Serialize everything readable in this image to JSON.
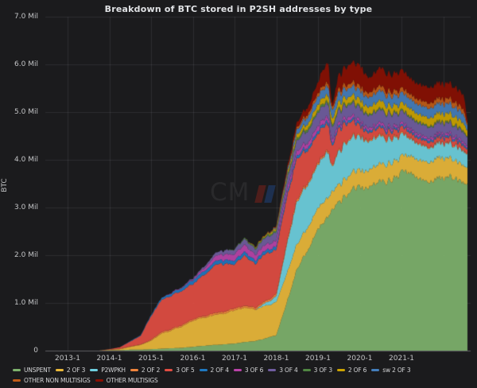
{
  "title": "Breakdown of BTC stored in P2SH addresses by type",
  "y_axis": {
    "label": "BTC",
    "ticks": [
      {
        "label": "7.0 Mil",
        "value": 7.0
      },
      {
        "label": "6.0 Mil",
        "value": 6.0
      },
      {
        "label": "5.0 Mil",
        "value": 5.0
      },
      {
        "label": "4.0 Mil",
        "value": 4.0
      },
      {
        "label": "3.0 Mil",
        "value": 3.0
      },
      {
        "label": "2.0 Mil",
        "value": 2.0
      },
      {
        "label": "1.0 Mil",
        "value": 1.0
      },
      {
        "label": "0",
        "value": 0
      }
    ]
  },
  "x_axis": {
    "ticks": [
      "2013-1",
      "2014-1",
      "2015-1",
      "2016-1",
      "2017-1",
      "2018-1",
      "2019-1",
      "2020-1",
      "2021-1"
    ]
  },
  "watermark": {
    "text": "CM",
    "logo": "coinmetrics-mark"
  },
  "colors": {
    "background": "#1b1b1d",
    "grid": "rgba(208,210,213,0.10)",
    "axis_line": "rgba(208,210,213,0.30)",
    "tick_text": "#c3c4c6",
    "title_text": "#e0e2e5"
  },
  "chart_data": {
    "type": "area",
    "stacked": true,
    "title": "Breakdown of BTC stored in P2SH addresses by type",
    "xlabel": "",
    "ylabel": "BTC",
    "unit": "Mil BTC",
    "ylim": [
      0,
      7.0
    ],
    "x_range": [
      "2012-07",
      "2022-08"
    ],
    "grid": true,
    "legend_position": "bottom",
    "x": [
      "2012-07",
      "2012-10",
      "2013-01",
      "2013-04",
      "2013-07",
      "2013-10",
      "2014-01",
      "2014-04",
      "2014-07",
      "2014-10",
      "2015-01",
      "2015-04",
      "2015-07",
      "2015-10",
      "2016-01",
      "2016-04",
      "2016-07",
      "2016-10",
      "2017-01",
      "2017-04",
      "2017-07",
      "2017-10",
      "2018-01",
      "2018-04",
      "2018-07",
      "2018-10",
      "2019-01",
      "2019-02",
      "2019-04",
      "2019-05",
      "2019-07",
      "2019-10",
      "2020-01",
      "2020-04",
      "2020-07",
      "2020-10",
      "2021-01",
      "2021-04",
      "2021-07",
      "2021-10",
      "2022-01",
      "2022-04",
      "2022-07",
      "2022-08"
    ],
    "series": [
      {
        "name": "UNSPENT",
        "color": "#7EB26D",
        "values": [
          0,
          0,
          0,
          0,
          0,
          0,
          0.01,
          0.01,
          0.02,
          0.02,
          0.03,
          0.04,
          0.05,
          0.06,
          0.08,
          0.1,
          0.12,
          0.13,
          0.15,
          0.18,
          0.2,
          0.26,
          0.32,
          1.0,
          1.7,
          2.1,
          2.55,
          2.65,
          2.8,
          2.95,
          3.1,
          3.3,
          3.45,
          3.4,
          3.55,
          3.55,
          3.72,
          3.8,
          3.55,
          3.6,
          3.65,
          3.62,
          3.55,
          3.5
        ]
      },
      {
        "name": "2 OF 3",
        "color": "#EAB839",
        "values": [
          0,
          0,
          0,
          0,
          0,
          0,
          0.01,
          0.02,
          0.06,
          0.1,
          0.18,
          0.32,
          0.38,
          0.45,
          0.55,
          0.6,
          0.62,
          0.65,
          0.7,
          0.72,
          0.66,
          0.68,
          0.7,
          0.6,
          0.52,
          0.48,
          0.44,
          0.43,
          0.41,
          0.38,
          0.36,
          0.36,
          0.35,
          0.36,
          0.37,
          0.36,
          0.33,
          0.36,
          0.4,
          0.42,
          0.42,
          0.38,
          0.36,
          0.35
        ]
      },
      {
        "name": "P2WPKH",
        "color": "#6ED0E0",
        "values": [
          0,
          0,
          0,
          0,
          0,
          0,
          0,
          0,
          0,
          0,
          0,
          0,
          0,
          0,
          0,
          0,
          0,
          0,
          0,
          0,
          0,
          0.06,
          0.12,
          0.6,
          0.9,
          0.9,
          0.9,
          0.95,
          0.93,
          0.5,
          0.7,
          0.75,
          0.7,
          0.6,
          0.58,
          0.5,
          0.45,
          0.35,
          0.32,
          0.3,
          0.3,
          0.3,
          0.3,
          0.28
        ]
      },
      {
        "name": "2 OF 2",
        "color": "#EF843C",
        "values": [
          0,
          0,
          0,
          0,
          0,
          0,
          0,
          0.01,
          0.01,
          0.01,
          0.02,
          0.03,
          0.03,
          0.03,
          0.03,
          0.03,
          0.04,
          0.04,
          0.04,
          0.04,
          0.04,
          0.04,
          0.05,
          0.05,
          0.05,
          0.04,
          0.04,
          0.04,
          0.04,
          0.03,
          0.03,
          0.03,
          0.03,
          0.03,
          0.03,
          0.03,
          0.03,
          0.02,
          0.02,
          0.02,
          0.02,
          0.02,
          0.02,
          0.02
        ]
      },
      {
        "name": "3 OF 5",
        "color": "#E24D42",
        "values": [
          0,
          0,
          0,
          0,
          0,
          0,
          0.01,
          0.03,
          0.1,
          0.18,
          0.5,
          0.68,
          0.7,
          0.72,
          0.73,
          0.85,
          1.0,
          1.0,
          0.92,
          1.05,
          0.92,
          1.0,
          0.92,
          0.95,
          0.85,
          0.7,
          0.6,
          0.62,
          0.55,
          0.4,
          0.45,
          0.35,
          0.2,
          0.15,
          0.15,
          0.13,
          0.12,
          0.1,
          0.1,
          0.1,
          0.1,
          0.1,
          0.09,
          0.08
        ]
      },
      {
        "name": "2 OF 4",
        "color": "#1F78C1",
        "values": [
          0,
          0,
          0,
          0,
          0,
          0,
          0,
          0,
          0.01,
          0.01,
          0.02,
          0.04,
          0.05,
          0.06,
          0.08,
          0.08,
          0.08,
          0.08,
          0.08,
          0.08,
          0.07,
          0.07,
          0.07,
          0.06,
          0.06,
          0.06,
          0.06,
          0.06,
          0.06,
          0.05,
          0.05,
          0.05,
          0.05,
          0.04,
          0.04,
          0.04,
          0.04,
          0.04,
          0.04,
          0.04,
          0.04,
          0.04,
          0.04,
          0.03
        ]
      },
      {
        "name": "3 OF 6",
        "color": "#BA43A9",
        "values": [
          0,
          0,
          0,
          0,
          0,
          0,
          0,
          0,
          0,
          0,
          0,
          0,
          0.01,
          0.01,
          0.02,
          0.05,
          0.1,
          0.12,
          0.13,
          0.15,
          0.12,
          0.12,
          0.12,
          0.1,
          0.1,
          0.1,
          0.1,
          0.1,
          0.09,
          0.08,
          0.07,
          0.07,
          0.06,
          0.06,
          0.06,
          0.06,
          0.05,
          0.05,
          0.05,
          0.05,
          0.05,
          0.05,
          0.05,
          0.04
        ]
      },
      {
        "name": "3 OF 4",
        "color": "#705DA0",
        "values": [
          0,
          0,
          0,
          0,
          0,
          0,
          0,
          0,
          0,
          0,
          0,
          0,
          0,
          0.01,
          0.02,
          0.04,
          0.06,
          0.08,
          0.1,
          0.12,
          0.12,
          0.15,
          0.18,
          0.2,
          0.22,
          0.25,
          0.28,
          0.28,
          0.28,
          0.26,
          0.26,
          0.25,
          0.26,
          0.26,
          0.27,
          0.26,
          0.24,
          0.23,
          0.23,
          0.22,
          0.22,
          0.21,
          0.2,
          0.18
        ]
      },
      {
        "name": "3 OF 3",
        "color": "#508642",
        "values": [
          0,
          0,
          0,
          0,
          0,
          0,
          0,
          0,
          0,
          0,
          0,
          0,
          0,
          0,
          0,
          0,
          0,
          0,
          0.01,
          0.02,
          0.03,
          0.03,
          0.04,
          0.04,
          0.05,
          0.05,
          0.05,
          0.05,
          0.05,
          0.05,
          0.04,
          0.04,
          0.04,
          0.03,
          0.03,
          0.03,
          0.03,
          0.03,
          0.03,
          0.03,
          0.03,
          0.03,
          0.03,
          0.02
        ]
      },
      {
        "name": "2 OF 6",
        "color": "#CCA300",
        "values": [
          0,
          0,
          0,
          0,
          0,
          0,
          0,
          0,
          0,
          0,
          0,
          0,
          0,
          0,
          0,
          0,
          0,
          0,
          0,
          0,
          0.01,
          0.02,
          0.04,
          0.06,
          0.08,
          0.1,
          0.12,
          0.12,
          0.13,
          0.13,
          0.14,
          0.13,
          0.14,
          0.15,
          0.16,
          0.15,
          0.15,
          0.16,
          0.16,
          0.17,
          0.17,
          0.17,
          0.16,
          0.12
        ]
      },
      {
        "name": "sw 2 OF 3",
        "color": "#447EBC",
        "values": [
          0,
          0,
          0,
          0,
          0,
          0,
          0,
          0,
          0,
          0,
          0,
          0,
          0,
          0,
          0,
          0,
          0,
          0,
          0,
          0,
          0,
          0,
          0.02,
          0.05,
          0.1,
          0.14,
          0.17,
          0.17,
          0.18,
          0.18,
          0.19,
          0.18,
          0.19,
          0.2,
          0.21,
          0.2,
          0.21,
          0.2,
          0.2,
          0.2,
          0.2,
          0.2,
          0.19,
          0.1
        ]
      },
      {
        "name": "OTHER NON MULTISIGS",
        "color": "#C15C17",
        "values": [
          0,
          0,
          0,
          0,
          0,
          0,
          0,
          0,
          0,
          0,
          0,
          0,
          0,
          0,
          0,
          0,
          0,
          0,
          0,
          0,
          0.01,
          0.01,
          0.02,
          0.03,
          0.05,
          0.06,
          0.07,
          0.07,
          0.08,
          0.07,
          0.08,
          0.09,
          0.09,
          0.1,
          0.1,
          0.1,
          0.1,
          0.1,
          0.11,
          0.11,
          0.11,
          0.11,
          0.1,
          0.04
        ]
      },
      {
        "name": "OTHER MULTISIGS",
        "color": "#890F02",
        "values": [
          0,
          0,
          0,
          0,
          0,
          0,
          0,
          0,
          0,
          0,
          0,
          0,
          0,
          0,
          0,
          0,
          0,
          0,
          0,
          0,
          0,
          0,
          0.01,
          0.05,
          0.1,
          0.15,
          0.22,
          0.31,
          0.42,
          0.05,
          0.3,
          0.4,
          0.44,
          0.3,
          0.38,
          0.35,
          0.38,
          0.32,
          0.33,
          0.32,
          0.32,
          0.31,
          0.3,
          0.05
        ]
      }
    ]
  }
}
